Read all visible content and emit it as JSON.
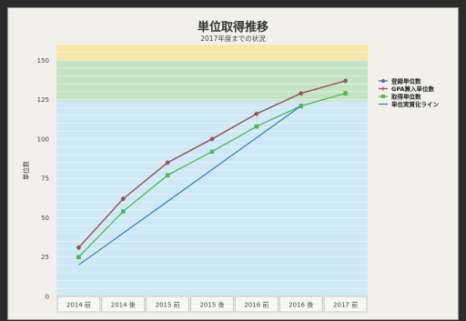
{
  "chart_data": {
    "type": "line",
    "title": "単位取得推移",
    "subtitle": "2017年度までの状況",
    "ylabel": "単位数",
    "xlabel": "",
    "ylim": [
      0,
      160
    ],
    "yticks": [
      0,
      25,
      50,
      75,
      100,
      125,
      150
    ],
    "categories": [
      "2014 前",
      "2014 後",
      "2015 前",
      "2015 後",
      "2016 前",
      "2016 後",
      "2017 前"
    ],
    "bands": [
      {
        "from": 0,
        "to": 124,
        "color": "#cfe8f5"
      },
      {
        "from": 124,
        "to": 150,
        "color": "#c4e3c4"
      },
      {
        "from": 150,
        "to": 160,
        "color": "#f7e6a7"
      }
    ],
    "series": [
      {
        "name": "登録単位数",
        "color": "#5a64a8",
        "marker": "circle",
        "values": [
          31,
          62,
          85,
          100,
          116,
          129,
          137
        ]
      },
      {
        "name": "GPA算入単位数",
        "color": "#a0524f",
        "marker": "cross",
        "values": [
          31,
          62,
          85,
          100,
          116,
          129,
          137
        ]
      },
      {
        "name": "取得単位数",
        "color": "#4fb84f",
        "marker": "square",
        "values": [
          25,
          54,
          77,
          92,
          108,
          121,
          129
        ]
      },
      {
        "name": "単位実質化ライン",
        "color": "#3a87b0",
        "marker": "none",
        "values": [
          20,
          null,
          null,
          null,
          null,
          121,
          null
        ]
      }
    ],
    "grid": true,
    "legend_position": "right"
  }
}
